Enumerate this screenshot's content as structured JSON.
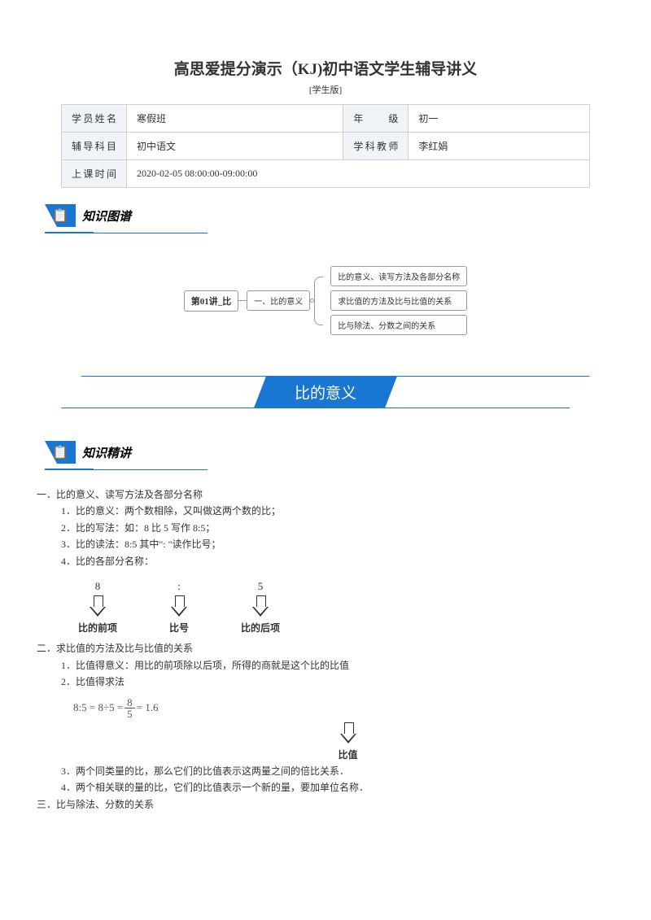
{
  "colors": {
    "primary": "#1976d2",
    "border": "#d0d0d0",
    "text": "#333333",
    "label_bg": "#f0f4f8"
  },
  "title": "高思爱提分演示（KJ)初中语文学生辅导讲义",
  "subtitle": "[学生版]",
  "info": {
    "r1c1_label": "学员姓名",
    "r1c1_value": "寒假班",
    "r1c2_label": "年　　级",
    "r1c2_value": "初一",
    "r2c1_label": "辅导科目",
    "r2c1_value": "初中语文",
    "r2c2_label": "学科教师",
    "r2c2_value": "李红娟",
    "r3c1_label": "上课时间",
    "r3c1_value": "2020-02-05 08:00:00-09:00:00"
  },
  "sections": {
    "map_title": "知识图谱",
    "lecture_title": "知识精讲"
  },
  "mindmap": {
    "root": "第01讲_比",
    "mid": "一、比的意义",
    "leaf1": "比的意义、读写方法及各部分名称",
    "leaf2": "求比值的方法及比与比值的关系",
    "leaf3": "比与除法、分数之间的关系"
  },
  "banner": "比的意义",
  "content": {
    "s1": "一．比的意义、读写方法及各部分名称",
    "s1_1": "1．比的意义：两个数相除，又叫做这两个数的比；",
    "s1_2": "2．比的写法：如：8 比 5 写作 8:5；",
    "s1_3": "3．比的读法：8:5 其中\": \"读作比号；",
    "s1_4": "4．比的各部分名称：",
    "dg1_top1": "8",
    "dg1_top2": ":",
    "dg1_top3": "5",
    "dg1_lbl1": "比的前项",
    "dg1_lbl2": "比号",
    "dg1_lbl3": "比的后项",
    "s2": "二．求比值的方法及比与比值的关系",
    "s2_1": "1．比值得意义：用比的前项除以后项，所得的商就是这个比的比值",
    "s2_2": "2．比值得求法",
    "formula_pre": "8:5 = 8÷5 =",
    "formula_num": "8",
    "formula_den": "5",
    "formula_post": "= 1.6",
    "formula_lbl": "比值",
    "s2_3": "3．两个同类量的比，那么它们的比值表示这两量之间的倍比关系．",
    "s2_4": "4．两个相关联的量的比，它们的比值表示一个新的量，要加单位名称．",
    "s3": "三．比与除法、分数的关系"
  }
}
